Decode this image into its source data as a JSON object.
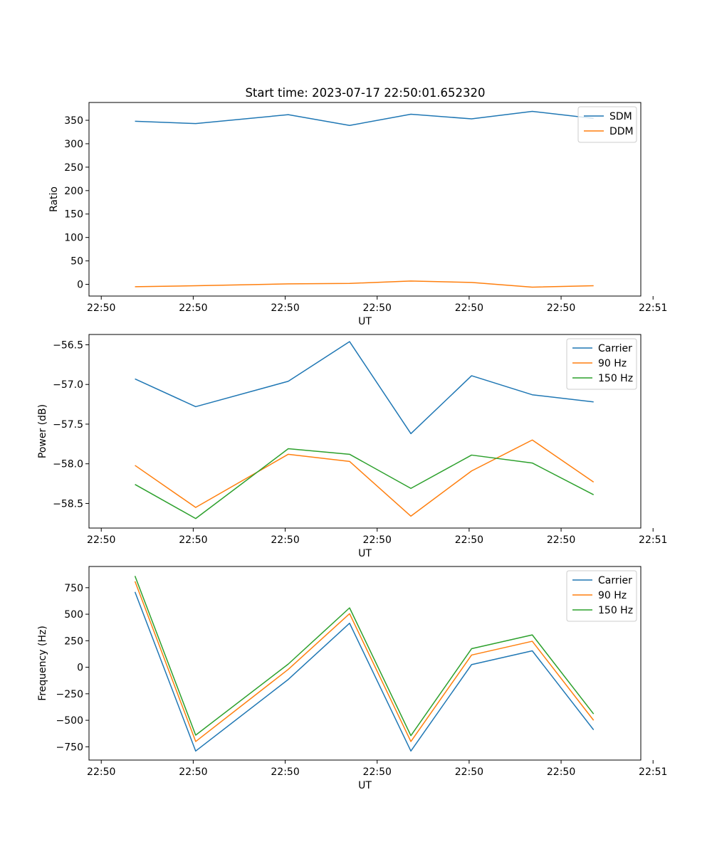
{
  "figure": {
    "title": "Start time: 2023-07-17 22:50:01.652320"
  },
  "chart_data": [
    {
      "type": "line",
      "title": "Start time: 2023-07-17 22:50:01.652320",
      "xlabel": "UT",
      "ylabel": "Ratio",
      "xlim": [
        -0.5,
        8.5
      ],
      "ylim": [
        -25,
        388
      ],
      "x_ticks": [
        -0.3,
        1.2,
        2.7,
        4.2,
        5.7,
        7.2,
        8.7
      ],
      "x_tick_labels": [
        "22:50",
        "22:50",
        "22:50",
        "22:50",
        "22:50",
        "22:50",
        "22:51"
      ],
      "y_ticks": [
        0,
        50,
        100,
        150,
        200,
        250,
        300,
        350
      ],
      "y_tick_labels": [
        "0",
        "50",
        "100",
        "150",
        "200",
        "250",
        "300",
        "350"
      ],
      "x": [
        0.25,
        1.24,
        2.75,
        3.75,
        4.75,
        5.74,
        6.73,
        7.73
      ],
      "series": [
        {
          "name": "SDM",
          "color": "#1f77b4",
          "values": [
            348,
            343,
            362,
            339,
            363,
            353,
            369,
            354
          ]
        },
        {
          "name": "DDM",
          "color": "#ff7f0e",
          "values": [
            -5,
            -3,
            1,
            2,
            7,
            4,
            -6,
            -3
          ]
        }
      ],
      "legend_position": "top-right"
    },
    {
      "type": "line",
      "title": "",
      "xlabel": "UT",
      "ylabel": "Power (dB)",
      "xlim": [
        -0.5,
        8.5
      ],
      "ylim": [
        -58.81,
        -56.37
      ],
      "x_ticks": [
        -0.3,
        1.2,
        2.7,
        4.2,
        5.7,
        7.2,
        8.7
      ],
      "x_tick_labels": [
        "22:50",
        "22:50",
        "22:50",
        "22:50",
        "22:50",
        "22:50",
        "22:51"
      ],
      "y_ticks": [
        -58.5,
        -58.0,
        -57.5,
        -57.0,
        -56.5
      ],
      "y_tick_labels": [
        "−58.5",
        "−58.0",
        "−57.5",
        "−57.0",
        "−56.5"
      ],
      "x": [
        0.25,
        1.24,
        2.75,
        3.75,
        4.75,
        5.74,
        6.73,
        7.73
      ],
      "series": [
        {
          "name": "Carrier",
          "color": "#1f77b4",
          "values": [
            -56.93,
            -57.28,
            -56.96,
            -56.46,
            -57.62,
            -56.89,
            -57.13,
            -57.22
          ]
        },
        {
          "name": "90 Hz",
          "color": "#ff7f0e",
          "values": [
            -58.02,
            -58.55,
            -57.88,
            -57.97,
            -58.66,
            -58.09,
            -57.7,
            -58.23
          ]
        },
        {
          "name": "150 Hz",
          "color": "#2ca02c",
          "values": [
            -58.26,
            -58.69,
            -57.81,
            -57.88,
            -58.31,
            -57.89,
            -57.99,
            -58.39
          ]
        }
      ],
      "legend_position": "top-right"
    },
    {
      "type": "line",
      "title": "",
      "xlabel": "UT",
      "ylabel": "Frequency (Hz)",
      "xlim": [
        -0.5,
        8.5
      ],
      "ylim": [
        -875,
        950
      ],
      "x_ticks": [
        -0.3,
        1.2,
        2.7,
        4.2,
        5.7,
        7.2,
        8.7
      ],
      "x_tick_labels": [
        "22:50",
        "22:50",
        "22:50",
        "22:50",
        "22:50",
        "22:50",
        "22:51"
      ],
      "y_ticks": [
        -750,
        -500,
        -250,
        0,
        250,
        500,
        750
      ],
      "y_tick_labels": [
        "−750",
        "−500",
        "−250",
        "0",
        "250",
        "500",
        "750"
      ],
      "x": [
        0.25,
        1.24,
        2.75,
        3.75,
        4.75,
        5.74,
        6.73,
        7.73
      ],
      "series": [
        {
          "name": "Carrier",
          "color": "#1f77b4",
          "values": [
            710,
            -790,
            -115,
            415,
            -790,
            25,
            155,
            -590
          ]
        },
        {
          "name": "90 Hz",
          "color": "#ff7f0e",
          "values": [
            810,
            -700,
            -20,
            505,
            -700,
            115,
            245,
            -500
          ]
        },
        {
          "name": "150 Hz",
          "color": "#2ca02c",
          "values": [
            860,
            -640,
            30,
            560,
            -645,
            175,
            305,
            -440
          ]
        }
      ],
      "legend_position": "top-right"
    }
  ]
}
